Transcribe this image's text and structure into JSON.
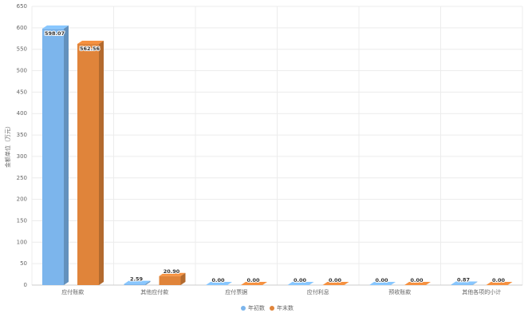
{
  "chart_data": {
    "type": "bar3d",
    "y_label": "金额单位（万元）",
    "categories": [
      "应付账款",
      "其他应付款",
      "应付票据",
      "应付利息",
      "预收账款",
      "其他各项的小计"
    ],
    "series": [
      {
        "name": "年初数",
        "color": "#7cb5ec",
        "values": [
          598.07,
          2.59,
          0,
          0,
          0,
          0.87
        ],
        "value_labels": [
          "598.07",
          "2.59",
          "0.00",
          "0.00",
          "0.00",
          "0.87"
        ]
      },
      {
        "name": "年末数",
        "color": "#e0843a",
        "values": [
          562.56,
          20.9,
          0,
          0,
          0,
          0
        ],
        "value_labels": [
          "562.56",
          "20.90",
          "0.00",
          "0.00",
          "0.00",
          "0.00"
        ]
      }
    ],
    "ylim": [
      0,
      650
    ],
    "yticks": [
      0,
      50,
      100,
      150,
      200,
      250,
      300,
      350,
      400,
      450,
      500,
      550,
      600,
      650
    ],
    "grid": true,
    "legend": "bottom"
  }
}
